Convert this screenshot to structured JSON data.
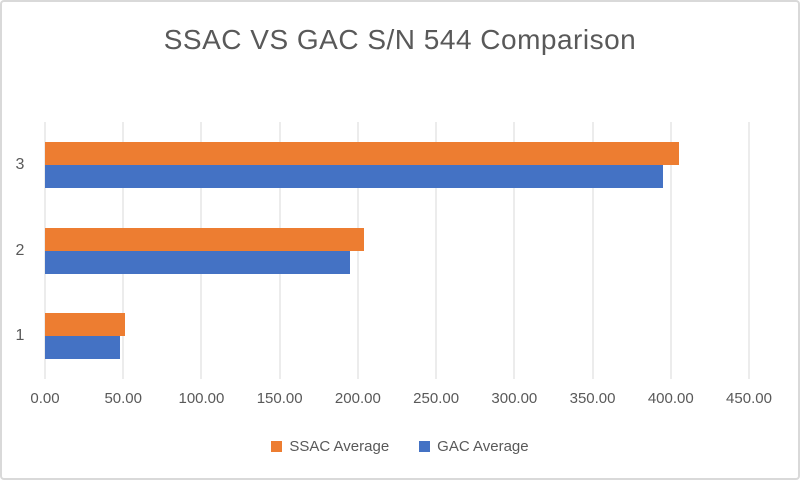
{
  "chart_data": {
    "type": "bar",
    "orientation": "horizontal",
    "title": "SSAC VS GAC S/N 544 Comparison",
    "categories": [
      "3",
      "2",
      "1"
    ],
    "series": [
      {
        "name": "SSAC Average",
        "color": "#ED7D31",
        "values": [
          405,
          204,
          51
        ]
      },
      {
        "name": "GAC Average",
        "color": "#4472C4",
        "values": [
          395,
          195,
          48
        ]
      }
    ],
    "x_ticks": [
      "0.00",
      "50.00",
      "100.00",
      "150.00",
      "200.00",
      "250.00",
      "300.00",
      "350.00",
      "400.00",
      "450.00"
    ],
    "xlim": [
      0,
      450
    ],
    "xlabel": "",
    "ylabel": "",
    "grid": true,
    "legend_position": "bottom"
  },
  "style": {
    "text_color": "#595959",
    "gridline_color": "#D9D9D9",
    "axis_line_color": "#D9D9D9",
    "chart_border_color": "#D9D9D9",
    "background": "#FFFFFF"
  }
}
